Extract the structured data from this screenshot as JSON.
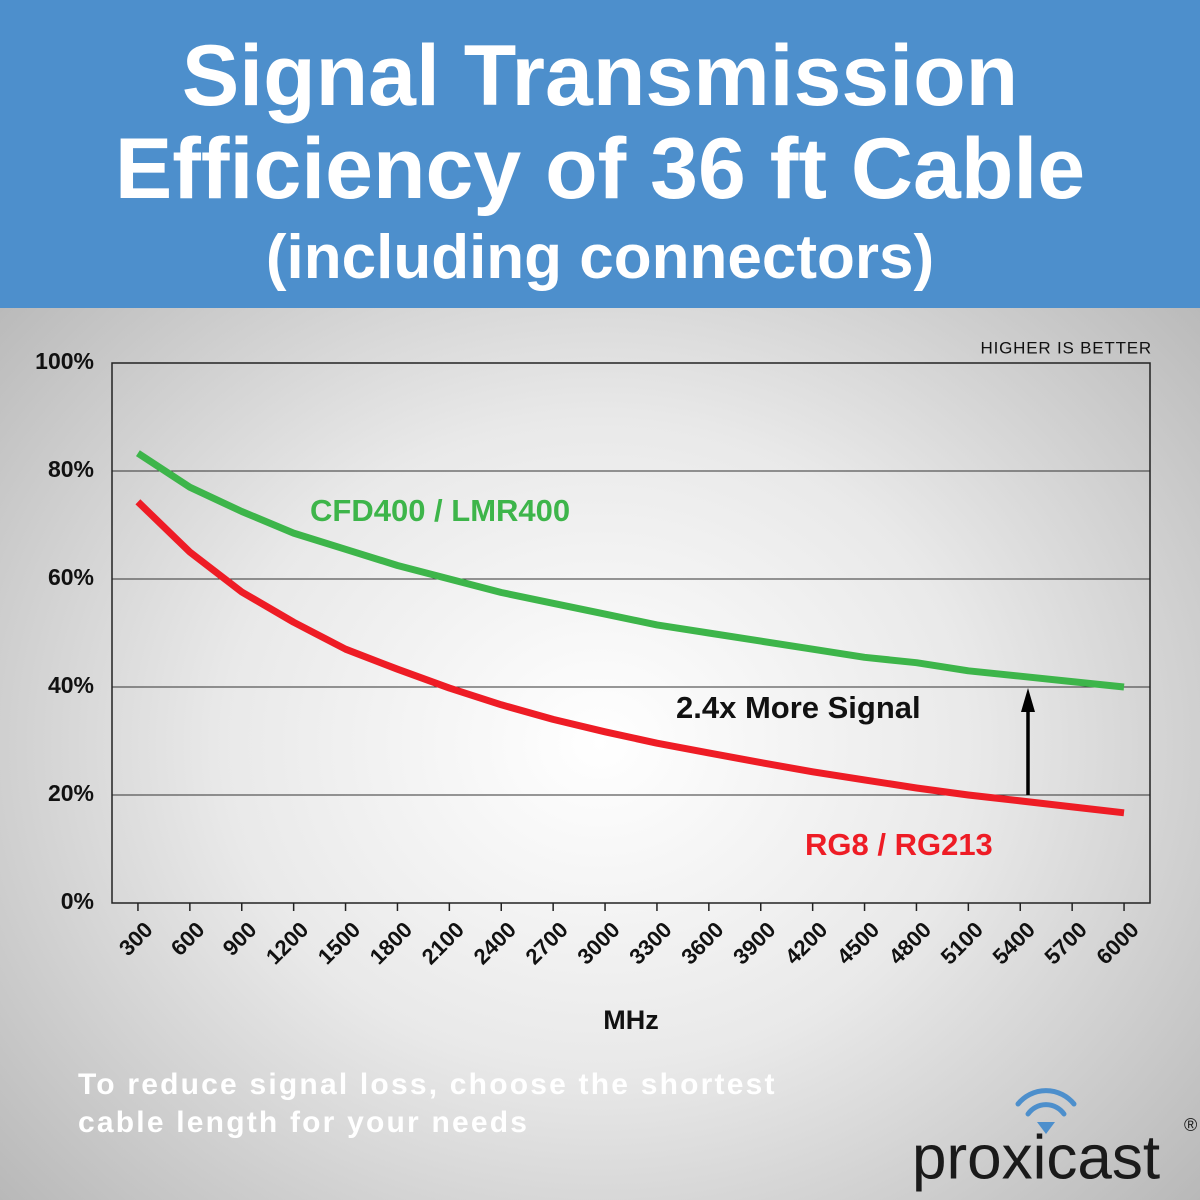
{
  "chart_data": {
    "type": "line",
    "title": "Signal Transmission Efficiency of 36 ft Cable",
    "subtitle": "(including connectors)",
    "x_label": "MHz",
    "x": [
      300,
      600,
      900,
      1200,
      1500,
      1800,
      2100,
      2400,
      2700,
      3000,
      3300,
      3600,
      3900,
      4200,
      4500,
      4800,
      5100,
      5400,
      5700,
      6000
    ],
    "xlim": [
      150,
      6150
    ],
    "xticks": [
      300,
      600,
      900,
      1200,
      1500,
      1800,
      2100,
      2400,
      2700,
      3000,
      3300,
      3600,
      3900,
      4200,
      4500,
      4800,
      5100,
      5400,
      5700,
      6000
    ],
    "ylim": [
      0,
      100
    ],
    "yticks": [
      {
        "value": 0,
        "label": "0%"
      },
      {
        "value": 20,
        "label": "20%"
      },
      {
        "value": 40,
        "label": "40%"
      },
      {
        "value": 60,
        "label": "60%"
      },
      {
        "value": 80,
        "label": "80%"
      },
      {
        "value": 100,
        "label": "100%"
      }
    ],
    "grid": true,
    "series": [
      {
        "name": "CFD400 / LMR400",
        "color": "#3db54a",
        "values": [
          83.3,
          77,
          72.5,
          68.5,
          65.5,
          62.5,
          60,
          57.5,
          55.5,
          53.5,
          51.5,
          50,
          48.5,
          47,
          45.5,
          44.5,
          43,
          42,
          41,
          40
        ]
      },
      {
        "name": "RG8 / RG213",
        "color": "#ee1c25",
        "values": [
          74.3,
          65,
          57.6,
          52,
          47,
          43.3,
          39.8,
          36.7,
          34,
          31.7,
          29.6,
          27.8,
          26,
          24.3,
          22.8,
          21.3,
          20,
          18.9,
          17.8,
          16.7
        ]
      }
    ],
    "annotations": [
      "HIGHER IS BETTER",
      "2.4x More Signal"
    ]
  },
  "footer": {
    "note": "To reduce signal loss, choose the shortest cable length for your needs",
    "brand": "proxicast",
    "registered": "®"
  }
}
